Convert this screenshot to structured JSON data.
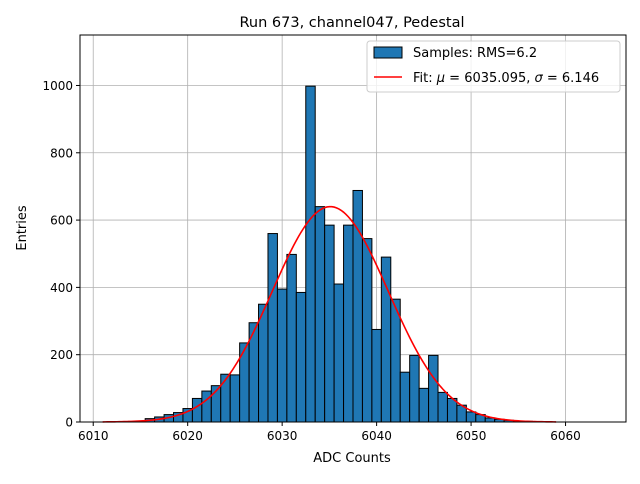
{
  "chart_data": {
    "type": "bar",
    "title": "Run 673, channel047, Pedestal",
    "xlabel": "ADC Counts",
    "ylabel": "Entries",
    "xlim": [
      6008.6,
      6066.4
    ],
    "ylim": [
      0,
      1150
    ],
    "xticks": [
      6010,
      6020,
      6030,
      6040,
      6050,
      6060
    ],
    "yticks": [
      0,
      200,
      400,
      600,
      800,
      1000
    ],
    "grid": true,
    "legend_position": "top-right",
    "colors": {
      "bars": "#1f77b4",
      "bar_edge": "#000000",
      "fit": "#ff0000",
      "grid": "#b0b0b0"
    },
    "histogram": {
      "name": "Samples: RMS=6.2",
      "bin_width": 1,
      "bins": [
        {
          "x": 6016,
          "y": 10
        },
        {
          "x": 6017,
          "y": 15
        },
        {
          "x": 6018,
          "y": 22
        },
        {
          "x": 6019,
          "y": 28
        },
        {
          "x": 6020,
          "y": 40
        },
        {
          "x": 6021,
          "y": 70
        },
        {
          "x": 6022,
          "y": 92
        },
        {
          "x": 6023,
          "y": 108
        },
        {
          "x": 6024,
          "y": 142
        },
        {
          "x": 6025,
          "y": 140
        },
        {
          "x": 6026,
          "y": 235
        },
        {
          "x": 6027,
          "y": 295
        },
        {
          "x": 6028,
          "y": 350
        },
        {
          "x": 6029,
          "y": 560
        },
        {
          "x": 6030,
          "y": 395
        },
        {
          "x": 6031,
          "y": 498
        },
        {
          "x": 6032,
          "y": 385
        },
        {
          "x": 6033,
          "y": 998
        },
        {
          "x": 6034,
          "y": 640
        },
        {
          "x": 6035,
          "y": 585
        },
        {
          "x": 6036,
          "y": 410
        },
        {
          "x": 6037,
          "y": 585
        },
        {
          "x": 6038,
          "y": 688
        },
        {
          "x": 6039,
          "y": 545
        },
        {
          "x": 6040,
          "y": 275
        },
        {
          "x": 6041,
          "y": 490
        },
        {
          "x": 6042,
          "y": 365
        },
        {
          "x": 6043,
          "y": 148
        },
        {
          "x": 6044,
          "y": 198
        },
        {
          "x": 6045,
          "y": 100
        },
        {
          "x": 6046,
          "y": 198
        },
        {
          "x": 6047,
          "y": 88
        },
        {
          "x": 6048,
          "y": 70
        },
        {
          "x": 6049,
          "y": 50
        },
        {
          "x": 6050,
          "y": 30
        },
        {
          "x": 6051,
          "y": 22
        },
        {
          "x": 6052,
          "y": 12
        },
        {
          "x": 6053,
          "y": 8
        },
        {
          "x": 6054,
          "y": 5
        },
        {
          "x": 6055,
          "y": 3
        },
        {
          "x": 6056,
          "y": 2
        },
        {
          "x": 6057,
          "y": 1
        }
      ]
    },
    "fit": {
      "name": "Fit: μ = 6035.095, σ = 6.146",
      "legend_prefix": "Fit: ",
      "legend_mu_symbol": "μ",
      "legend_mu_text": " = 6035.095, ",
      "legend_sigma_symbol": "σ",
      "legend_sigma_text": " = 6.146",
      "type": "gaussian",
      "mu": 6035.095,
      "sigma": 6.146,
      "amplitude": 640,
      "x_range": [
        6011,
        6059
      ]
    }
  }
}
